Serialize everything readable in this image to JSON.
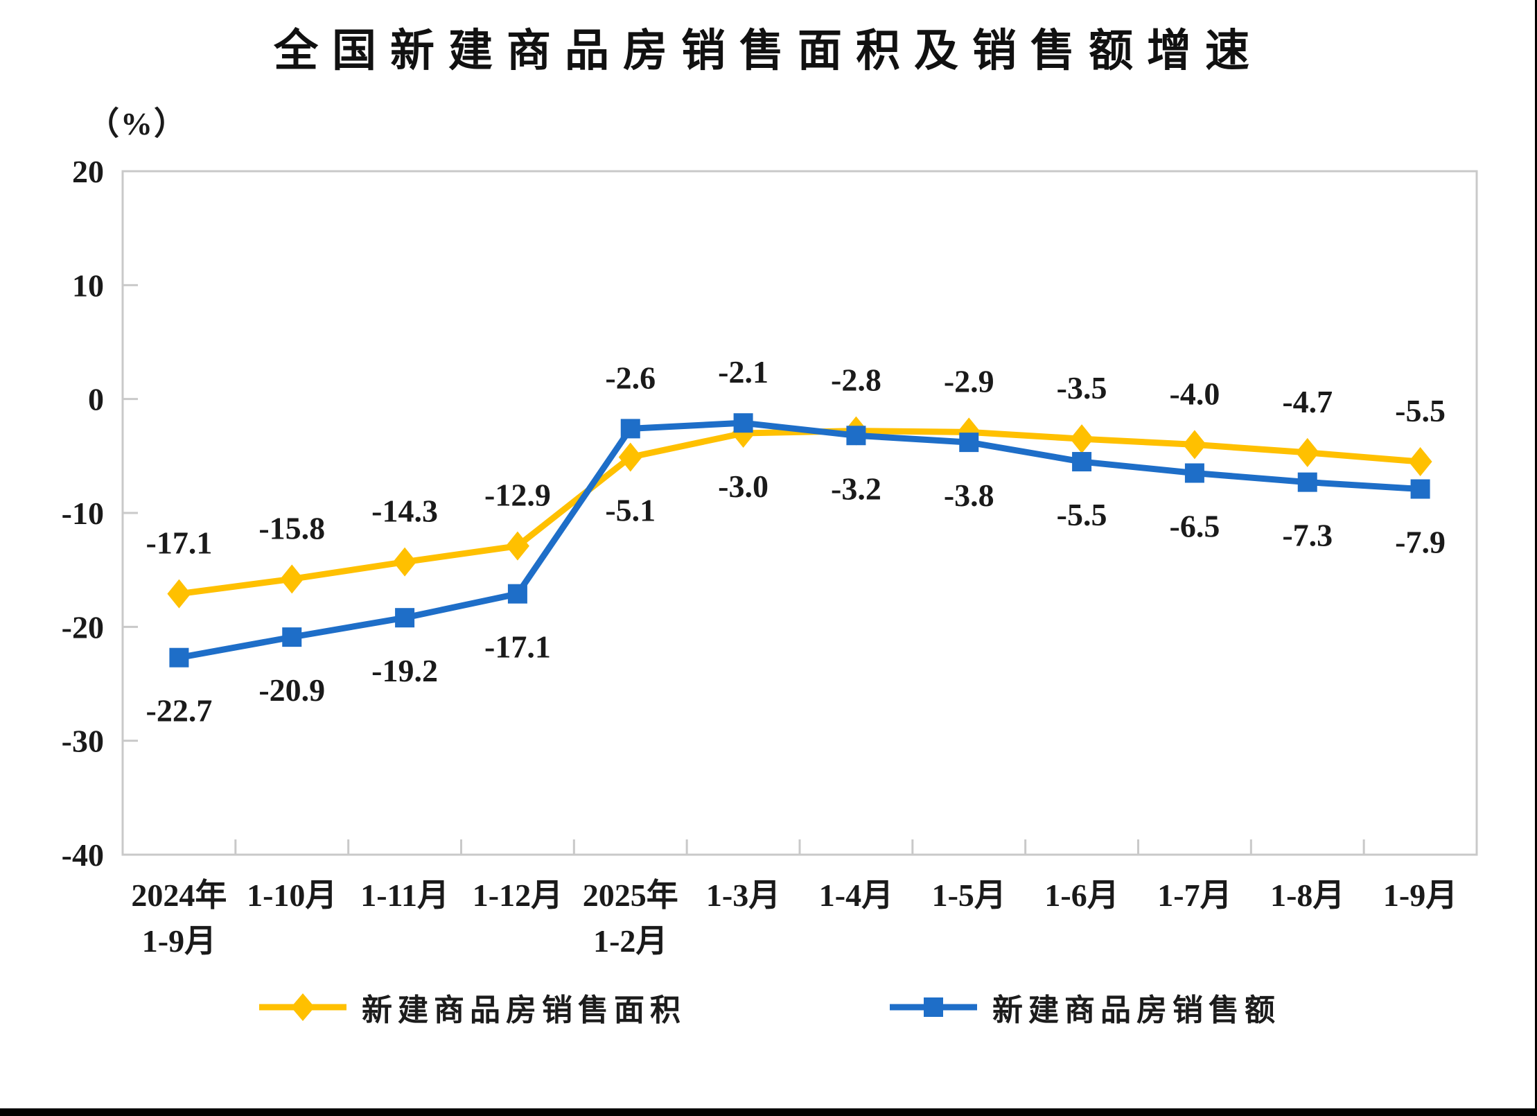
{
  "page": {
    "background": "#ffffff",
    "axis_color": "#c9c9c9",
    "text_color": "#1a1a1a"
  },
  "chart_data": {
    "type": "line",
    "title": "全国新建商品房销售面积及销售额增速",
    "unit_label": "（%）",
    "grid": false,
    "legend_position": "bottom",
    "categories": [
      {
        "line1": "2024年",
        "line2": "1-9月"
      },
      {
        "line1": "1-10月",
        "line2": ""
      },
      {
        "line1": "1-11月",
        "line2": ""
      },
      {
        "line1": "1-12月",
        "line2": ""
      },
      {
        "line1": "2025年",
        "line2": "1-2月"
      },
      {
        "line1": "1-3月",
        "line2": ""
      },
      {
        "line1": "1-4月",
        "line2": ""
      },
      {
        "line1": "1-5月",
        "line2": ""
      },
      {
        "line1": "1-6月",
        "line2": ""
      },
      {
        "line1": "1-7月",
        "line2": ""
      },
      {
        "line1": "1-8月",
        "line2": ""
      },
      {
        "line1": "1-9月",
        "line2": ""
      }
    ],
    "y_axis": {
      "min": -40,
      "max": 20,
      "step": 10,
      "ticks": [
        20,
        10,
        0,
        -10,
        -20,
        -30,
        -40
      ]
    },
    "series": [
      {
        "name": "新建商品房销售面积",
        "color": "#FFC000",
        "marker": "diamond",
        "values": [
          -17.1,
          -15.8,
          -14.3,
          -12.9,
          -5.1,
          -3.0,
          -2.8,
          -2.9,
          -3.5,
          -4.0,
          -4.7,
          -5.5
        ],
        "label_sides": [
          "above",
          "above",
          "above",
          "above",
          "below",
          "below",
          "above",
          "above",
          "above",
          "above",
          "above",
          "above"
        ]
      },
      {
        "name": "新建商品房销售额",
        "color": "#1E6EC8",
        "marker": "square",
        "values": [
          -22.7,
          -20.9,
          -19.2,
          -17.1,
          -2.6,
          -2.1,
          -3.2,
          -3.8,
          -5.5,
          -6.5,
          -7.3,
          -7.9
        ],
        "label_sides": [
          "below",
          "below",
          "below",
          "below",
          "above",
          "above",
          "below",
          "below",
          "below",
          "below",
          "below",
          "below"
        ]
      }
    ]
  }
}
